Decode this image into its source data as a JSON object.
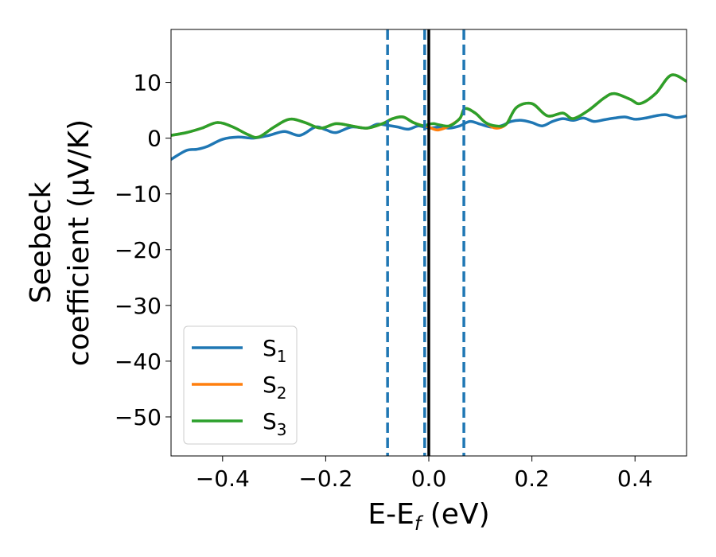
{
  "chart_data": {
    "type": "line",
    "xlabel": {
      "main": "E-E",
      "sub": "f",
      "unit": " (eV)"
    },
    "ylabel": {
      "line1": "Seebeck",
      "line2": "coefficient  (μV/K)"
    },
    "xlim": [
      -0.5,
      0.5
    ],
    "ylim": [
      -57,
      19.5
    ],
    "xticks": [
      -0.4,
      -0.2,
      0.0,
      0.2,
      0.4
    ],
    "xtick_labels": [
      "−0.4",
      "−0.2",
      "0.0",
      "0.2",
      "0.4"
    ],
    "yticks": [
      10,
      0,
      -10,
      -20,
      -30,
      -40,
      -50
    ],
    "ytick_labels": [
      "10",
      "0",
      "−10",
      "−20",
      "−30",
      "−40",
      "−50"
    ],
    "grid": false,
    "legend_position": "lower-left",
    "vertical_lines": {
      "solid": {
        "x": 0.0,
        "color": "#000000"
      },
      "dashed": {
        "x": [
          -0.08,
          -0.008,
          0.068
        ],
        "color": "#1f77b4"
      }
    },
    "series": [
      {
        "name": "S",
        "sub": "1",
        "color": "#1f77b4",
        "x": [
          -0.5,
          -0.47,
          -0.45,
          -0.43,
          -0.4,
          -0.37,
          -0.34,
          -0.31,
          -0.28,
          -0.25,
          -0.22,
          -0.2,
          -0.18,
          -0.15,
          -0.12,
          -0.1,
          -0.08,
          -0.06,
          -0.04,
          -0.02,
          0.0,
          0.02,
          0.04,
          0.06,
          0.08,
          0.1,
          0.12,
          0.14,
          0.16,
          0.18,
          0.2,
          0.22,
          0.24,
          0.26,
          0.28,
          0.3,
          0.32,
          0.34,
          0.36,
          0.38,
          0.4,
          0.42,
          0.44,
          0.46,
          0.48,
          0.5
        ],
        "values": [
          -3.8,
          -2.2,
          -2.0,
          -1.5,
          -0.2,
          0.2,
          0.0,
          0.5,
          1.2,
          0.5,
          2.0,
          1.5,
          1.0,
          2.0,
          1.8,
          2.5,
          2.3,
          2.0,
          1.6,
          2.2,
          1.8,
          2.0,
          1.8,
          2.2,
          3.0,
          2.5,
          2.0,
          2.2,
          3.0,
          3.2,
          2.8,
          2.2,
          3.0,
          3.5,
          3.2,
          3.6,
          3.0,
          3.3,
          3.6,
          3.8,
          3.4,
          3.6,
          4.0,
          4.2,
          3.7,
          4.0
        ]
      },
      {
        "name": "S",
        "sub": "2",
        "color": "#ff7f0e",
        "x": [
          -0.5,
          -0.47,
          -0.44,
          -0.41,
          -0.38,
          -0.35,
          -0.33,
          -0.3,
          -0.27,
          -0.24,
          -0.21,
          -0.18,
          -0.15,
          -0.12,
          -0.09,
          -0.07,
          -0.05,
          -0.03,
          -0.01,
          0.0,
          0.01,
          0.02,
          0.04,
          0.06,
          0.07,
          0.09,
          0.11,
          0.13,
          0.15,
          0.17,
          0.2,
          0.23,
          0.26,
          0.28,
          0.31,
          0.34,
          0.36,
          0.39,
          0.41,
          0.44,
          0.47,
          0.5
        ],
        "values": [
          0.5,
          1.0,
          1.8,
          2.8,
          2.0,
          0.6,
          0.2,
          2.0,
          3.4,
          2.8,
          1.8,
          2.6,
          2.2,
          1.8,
          2.6,
          3.5,
          3.8,
          2.8,
          2.2,
          2.0,
          1.6,
          1.5,
          2.2,
          3.5,
          5.3,
          4.5,
          2.8,
          1.8,
          2.5,
          5.5,
          6.2,
          4.0,
          4.5,
          3.5,
          5.0,
          7.2,
          8.0,
          7.0,
          6.2,
          8.0,
          11.3,
          10.2
        ]
      },
      {
        "name": "S",
        "sub": "3",
        "color": "#2ca02c",
        "x": [
          -0.5,
          -0.47,
          -0.44,
          -0.41,
          -0.38,
          -0.35,
          -0.33,
          -0.3,
          -0.27,
          -0.24,
          -0.21,
          -0.18,
          -0.15,
          -0.12,
          -0.09,
          -0.07,
          -0.05,
          -0.03,
          -0.01,
          0.0,
          0.01,
          0.02,
          0.04,
          0.06,
          0.07,
          0.09,
          0.11,
          0.13,
          0.15,
          0.17,
          0.2,
          0.23,
          0.26,
          0.28,
          0.31,
          0.34,
          0.36,
          0.39,
          0.41,
          0.44,
          0.47,
          0.5
        ],
        "values": [
          0.5,
          1.0,
          1.8,
          2.8,
          2.0,
          0.6,
          0.2,
          2.0,
          3.4,
          2.8,
          1.8,
          2.6,
          2.2,
          1.8,
          2.6,
          3.5,
          3.8,
          2.8,
          2.2,
          2.5,
          2.6,
          2.4,
          2.2,
          3.5,
          5.3,
          4.5,
          2.8,
          2.2,
          2.5,
          5.5,
          6.2,
          4.0,
          4.5,
          3.5,
          5.0,
          7.2,
          8.0,
          7.0,
          6.2,
          8.0,
          11.3,
          10.2
        ]
      }
    ]
  }
}
